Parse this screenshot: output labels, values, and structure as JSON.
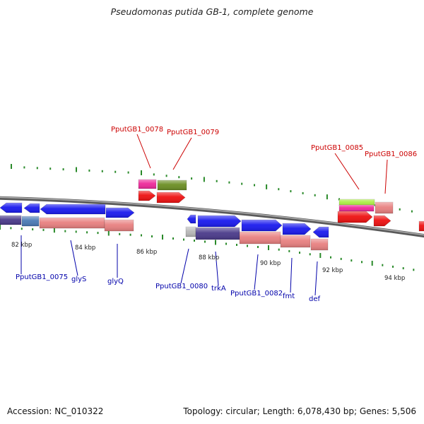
{
  "title": "Pseudomonas putida GB-1, complete genome",
  "footer": {
    "accession": "Accession: NC_010322",
    "summary": "Topology: circular; Length: 6,078,430 bp; Genes: 5,506"
  },
  "colors": {
    "backbone": "#808080",
    "tick": "#2a8a2a",
    "label_top": "#cc0000",
    "label_bottom": "#0000aa",
    "blue": "#1a1aee",
    "red": "#ee1111",
    "pink": "#e88080",
    "purple": "#4a3a8a",
    "steel": "#4a7ab5",
    "magenta": "#ee2a9a",
    "olive": "#6b8e23",
    "lime": "#aaee44",
    "grey": "#b8b8b8"
  },
  "scale_labels": [
    "82 kbp",
    "84 kbp",
    "86 kbp",
    "88 kbp",
    "90 kbp",
    "92 kbp",
    "94 kbp"
  ],
  "gene_labels_top": [
    "PputGB1_0078",
    "PputGB1_0079",
    "PputGB1_0085",
    "PputGB1_0086"
  ],
  "gene_labels_bottom": [
    "PputGB1_0075",
    "glyS",
    "glyQ",
    "PputGB1_0080",
    "trkA",
    "PputGB1_0082",
    "fmt",
    "def"
  ]
}
